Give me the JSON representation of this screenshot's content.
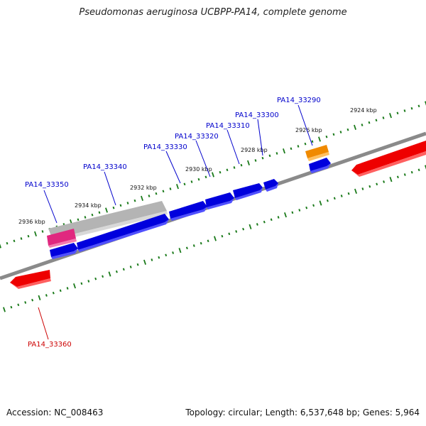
{
  "header": {
    "title": "Pseudomonas aeruginosa UCBPP-PA14, complete genome"
  },
  "footer": {
    "accession": "Accession: NC_008463",
    "summary": "Topology: circular; Length: 6,537,648 bp; Genes: 5,964"
  },
  "scale_labels": [
    "2936 kbp",
    "2934 kbp",
    "2932 kbp",
    "2930 kbp",
    "2928 kbp",
    "2926 kbp",
    "2924 kbp"
  ],
  "gene_labels": [
    "PA14_33350",
    "PA14_33340",
    "PA14_33330",
    "PA14_33320",
    "PA14_33310",
    "PA14_33300",
    "PA14_33290",
    "PA14_33360"
  ],
  "colors": {
    "forward_gene": "#0000ee",
    "reverse_gene": "#ee0000",
    "gray_feature": "#b8b8b8",
    "pink_feature": "#e8308a",
    "orange_feature": "#f09010",
    "backbone": "#808080",
    "tick": "#1a7a1a",
    "label_blue": "#0000cc",
    "label_red": "#cc0000"
  }
}
